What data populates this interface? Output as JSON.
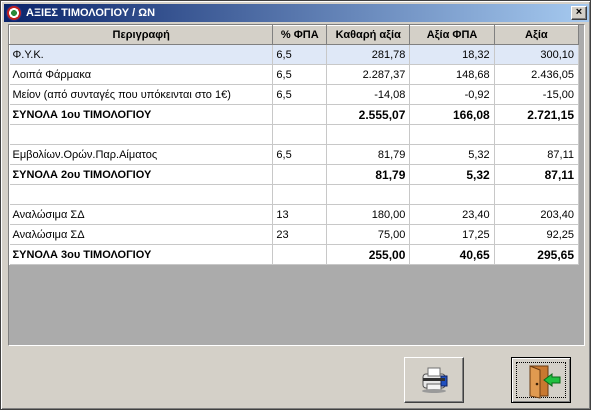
{
  "window": {
    "title": "ΑΞΙΕΣ ΤΙΜΟΛΟΓΙΟΥ / ΩΝ",
    "close_label": "×",
    "app_icon": "app-logo-icon"
  },
  "table": {
    "columns": [
      "Περιγραφή",
      "% ΦΠΑ",
      "Καθαρή αξία",
      "Αξία ΦΠΑ",
      "Αξία"
    ],
    "rows": [
      {
        "desc": "Φ.Υ.Κ.",
        "vat": "6,5",
        "net": "281,78",
        "vat_amount": "18,32",
        "value": "300,10",
        "kind": "selected"
      },
      {
        "desc": "Λοιπά Φάρμακα",
        "vat": "6,5",
        "net": "2.287,37",
        "vat_amount": "148,68",
        "value": "2.436,05",
        "kind": "normal"
      },
      {
        "desc": "Μείον (από συνταγές που υπόκεινται στο 1€)",
        "vat": "6,5",
        "net": "-14,08",
        "vat_amount": "-0,92",
        "value": "-15,00",
        "kind": "normal"
      },
      {
        "desc": "ΣΥΝΟΛΑ 1ου ΤΙΜΟΛΟΓΙΟΥ",
        "vat": "",
        "net": "2.555,07",
        "vat_amount": "166,08",
        "value": "2.721,15",
        "kind": "total"
      },
      {
        "desc": "",
        "vat": "",
        "net": "",
        "vat_amount": "",
        "value": "",
        "kind": "empty"
      },
      {
        "desc": "Εμβολίων.Ορών.Παρ.Αίματος",
        "vat": "6,5",
        "net": "81,79",
        "vat_amount": "5,32",
        "value": "87,11",
        "kind": "normal"
      },
      {
        "desc": "ΣΥΝΟΛΑ 2ου ΤΙΜΟΛΟΓΙΟΥ",
        "vat": "",
        "net": "81,79",
        "vat_amount": "5,32",
        "value": "87,11",
        "kind": "total"
      },
      {
        "desc": "",
        "vat": "",
        "net": "",
        "vat_amount": "",
        "value": "",
        "kind": "empty"
      },
      {
        "desc": "Αναλώσιμα ΣΔ",
        "vat": "13",
        "net": "180,00",
        "vat_amount": "23,40",
        "value": "203,40",
        "kind": "normal"
      },
      {
        "desc": "Αναλώσιμα ΣΔ",
        "vat": "23",
        "net": "75,00",
        "vat_amount": "17,25",
        "value": "92,25",
        "kind": "normal"
      },
      {
        "desc": "ΣΥΝΟΛΑ 3ου ΤΙΜΟΛΟΓΙΟΥ",
        "vat": "",
        "net": "255,00",
        "vat_amount": "40,65",
        "value": "295,65",
        "kind": "total"
      }
    ]
  },
  "buttons": {
    "print_icon": "printer-icon",
    "exit_icon": "exit-door-icon"
  },
  "colors": {
    "title_start": "#0a246a",
    "title_end": "#a6caf0",
    "selected_row": "#dfe8f7"
  }
}
